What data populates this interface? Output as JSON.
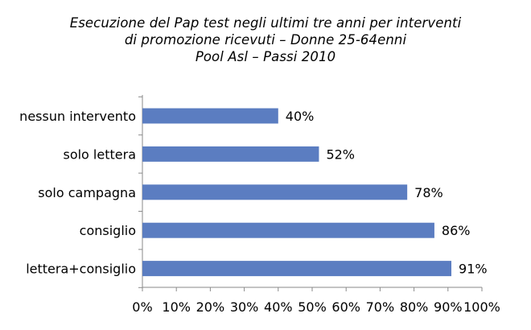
{
  "chart_data": {
    "type": "bar",
    "orientation": "horizontal",
    "title": [
      "Esecuzione del Pap test negli ultimi tre anni per interventi",
      "di promozione ricevuti – Donne 25-64enni",
      "Pool Asl – Passi 2010"
    ],
    "categories": [
      "nessun intervento",
      "solo lettera",
      "solo campagna",
      "consiglio",
      "lettera+consiglio"
    ],
    "values": [
      40,
      52,
      78,
      86,
      91
    ],
    "value_labels": [
      "40%",
      "52%",
      "78%",
      "86%",
      "91%"
    ],
    "xlim": [
      0,
      100
    ],
    "x_ticks": [
      0,
      10,
      20,
      30,
      40,
      50,
      60,
      70,
      80,
      90,
      100
    ],
    "x_tick_labels": [
      "0%",
      "10%",
      "20%",
      "30%",
      "40%",
      "50%",
      "60%",
      "70%",
      "80%",
      "90%",
      "100%"
    ],
    "grid": false,
    "legend": "none",
    "colors": {
      "bar": "#5b7dc1",
      "axis": "#8a8a8a",
      "text": "#000000"
    }
  }
}
